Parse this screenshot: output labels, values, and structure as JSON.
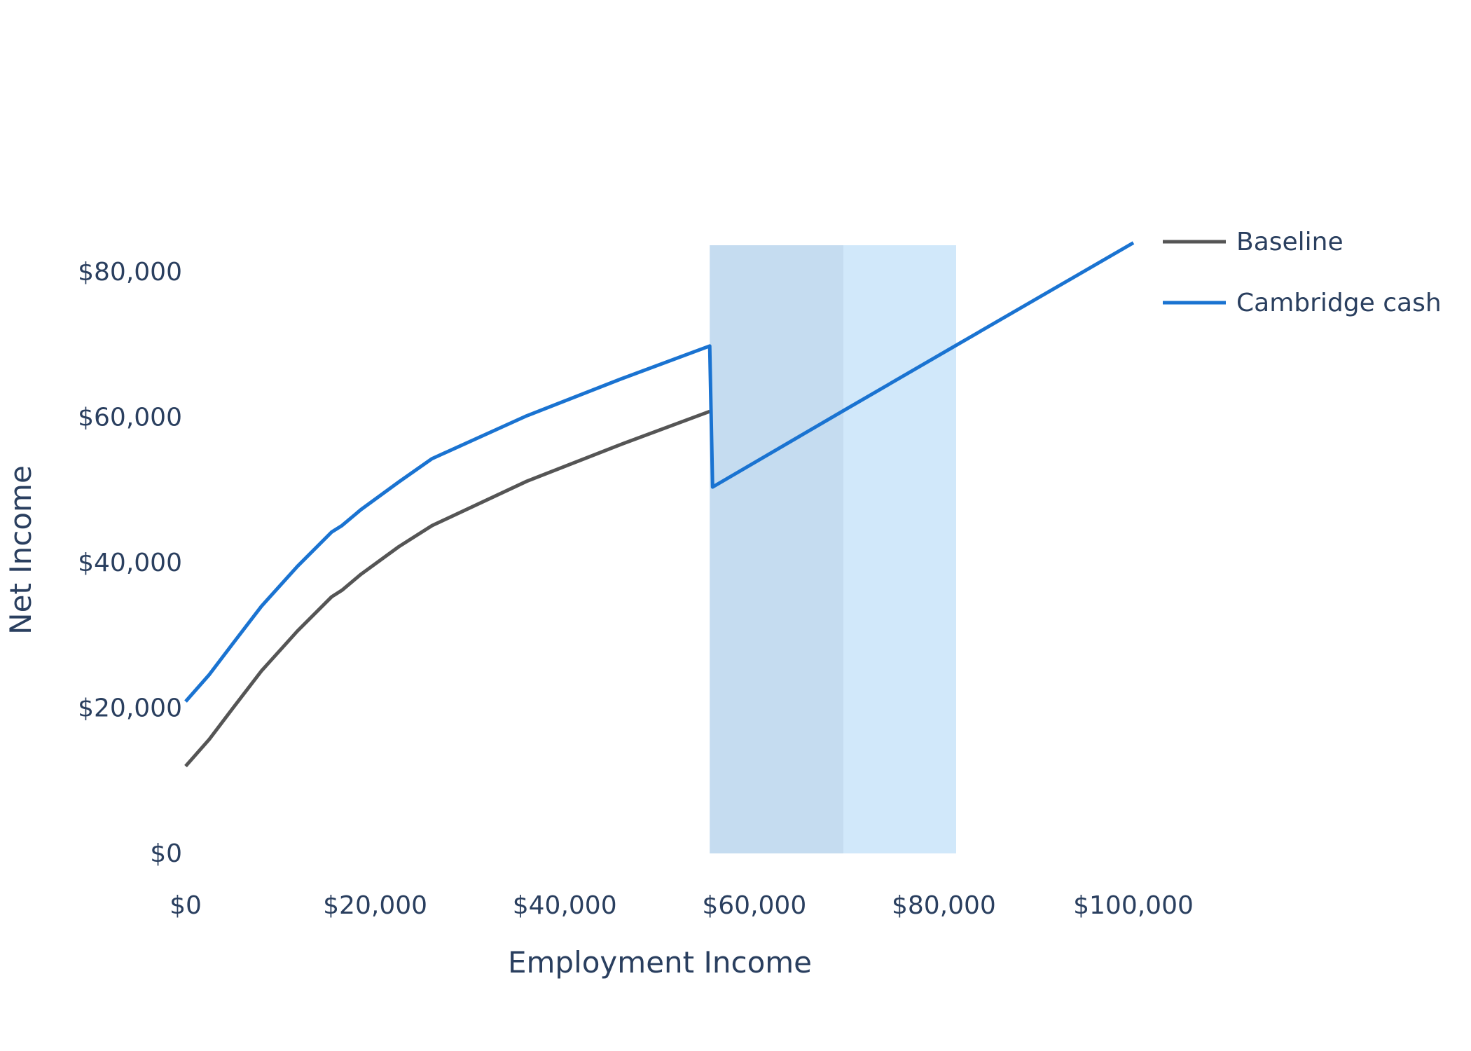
{
  "chart_data": {
    "type": "line",
    "title": "",
    "xlabel": "Employment Income",
    "ylabel": "Net Income",
    "xlim": [
      0,
      100000
    ],
    "ylim": [
      0,
      80000
    ],
    "grid": false,
    "legend_placement": "top-right",
    "x_ticks": [
      0,
      20000,
      40000,
      60000,
      80000,
      100000
    ],
    "x_tick_labels": [
      "$0",
      "$20,000",
      "$40,000",
      "$60,000",
      "$80,000",
      "$100,000"
    ],
    "y_ticks": [
      0,
      20000,
      40000,
      60000,
      80000
    ],
    "y_tick_labels": [
      "$0",
      "$20,000",
      "$40,000",
      "$60,000",
      "$80,000"
    ],
    "shaded_regions": [
      {
        "x0": 55300,
        "x1": 69400,
        "color": "#c5dcf0"
      },
      {
        "x0": 69400,
        "x1": 81300,
        "color": "#d1e8fa"
      }
    ],
    "series": [
      {
        "name": "Baseline",
        "color": "#555555",
        "x": [
          0,
          2500,
          5000,
          8000,
          11800,
          15400,
          16500,
          18500,
          22500,
          26000,
          36000,
          46000,
          55300
        ],
        "y": [
          12000,
          15700,
          20000,
          25100,
          30600,
          35300,
          36200,
          38400,
          42200,
          45100,
          51200,
          56300,
          60800
        ]
      },
      {
        "name": "Cambridge cash",
        "color": "#1a73d1",
        "x": [
          0,
          2500,
          5000,
          8000,
          11800,
          15400,
          16500,
          18500,
          22500,
          26000,
          36000,
          46000,
          55300,
          55600,
          69400,
          81300,
          100000
        ],
        "y": [
          20900,
          24600,
          28900,
          34000,
          39500,
          44200,
          45100,
          47300,
          51100,
          54300,
          60200,
          65300,
          69800,
          50400,
          60900,
          69900,
          84000
        ]
      }
    ]
  }
}
